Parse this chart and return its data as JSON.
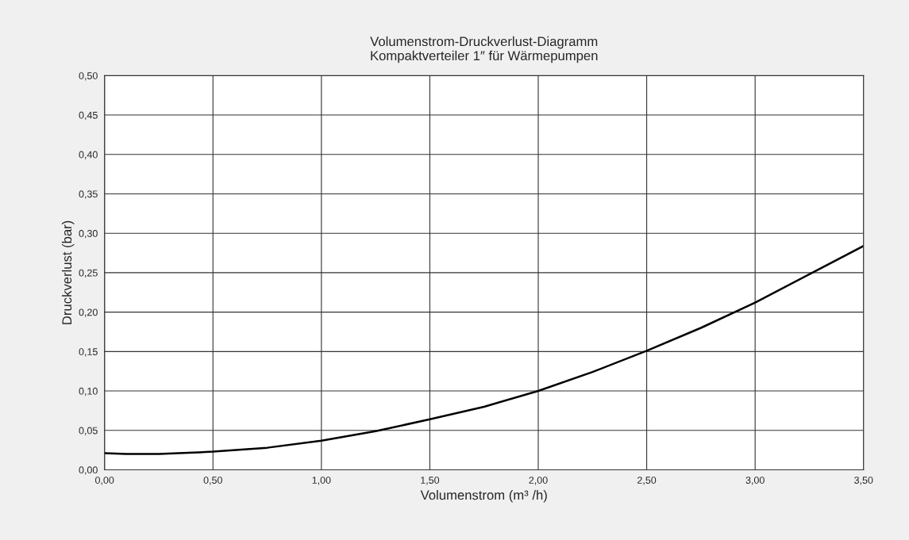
{
  "chart_data": {
    "type": "line",
    "title": "Volumenstrom-Druckverlust-Diagramm\nKompaktverteiler 1″ für Wärmepumpen",
    "xlabel": "Volumenstrom (m³ /h)",
    "ylabel": "Druckverlust (bar)",
    "x": [
      0,
      0.1,
      0.25,
      0.5,
      0.75,
      1.0,
      1.25,
      1.5,
      1.75,
      2.0,
      2.25,
      2.5,
      2.75,
      3.0,
      3.25,
      3.5
    ],
    "series": [
      {
        "color": "#000000",
        "values": [
          0.021,
          0.02,
          0.02,
          0.023,
          0.028,
          0.037,
          0.049,
          0.064,
          0.08,
          0.1,
          0.124,
          0.151,
          0.18,
          0.212,
          0.248,
          0.284
        ]
      }
    ],
    "xlim": [
      0,
      3.5
    ],
    "ylim": [
      0,
      0.5
    ],
    "xticks": [
      {
        "value": 0,
        "label": "0,00"
      },
      {
        "value": 0.5,
        "label": "0,50"
      },
      {
        "value": 1.0,
        "label": "1,00"
      },
      {
        "value": 1.5,
        "label": "1,50"
      },
      {
        "value": 2.0,
        "label": "2,00"
      },
      {
        "value": 2.5,
        "label": "2,50"
      },
      {
        "value": 3.0,
        "label": "3,00"
      },
      {
        "value": 3.5,
        "label": "3,50"
      }
    ],
    "yticks": [
      {
        "value": 0,
        "label": "0,00"
      },
      {
        "value": 0.05,
        "label": "0,05"
      },
      {
        "value": 0.1,
        "label": "0,10"
      },
      {
        "value": 0.15,
        "label": "0,15"
      },
      {
        "value": 0.2,
        "label": "0,20"
      },
      {
        "value": 0.25,
        "label": "0,25"
      },
      {
        "value": 0.3,
        "label": "0,30"
      },
      {
        "value": 0.35,
        "label": "0,35"
      },
      {
        "value": 0.4,
        "label": "0,40"
      },
      {
        "value": 0.45,
        "label": "0,45"
      },
      {
        "value": 0.5,
        "label": "0,50"
      }
    ],
    "grid": true,
    "marker": "none",
    "line_style": "solid"
  }
}
